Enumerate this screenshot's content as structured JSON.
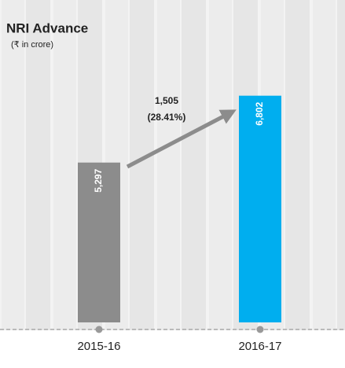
{
  "chart_data": {
    "type": "bar",
    "title": "NRI Advance",
    "subtitle": "(₹ in crore)",
    "categories": [
      "2015-16",
      "2016-17"
    ],
    "values": [
      5297,
      6802
    ],
    "value_labels": [
      "5,297",
      "6,802"
    ],
    "colors": [
      "#8c8c8c",
      "#00aeef"
    ],
    "ylim": [
      1700,
      8000
    ],
    "annotations": [
      "1,505",
      "(28.41%)"
    ]
  }
}
